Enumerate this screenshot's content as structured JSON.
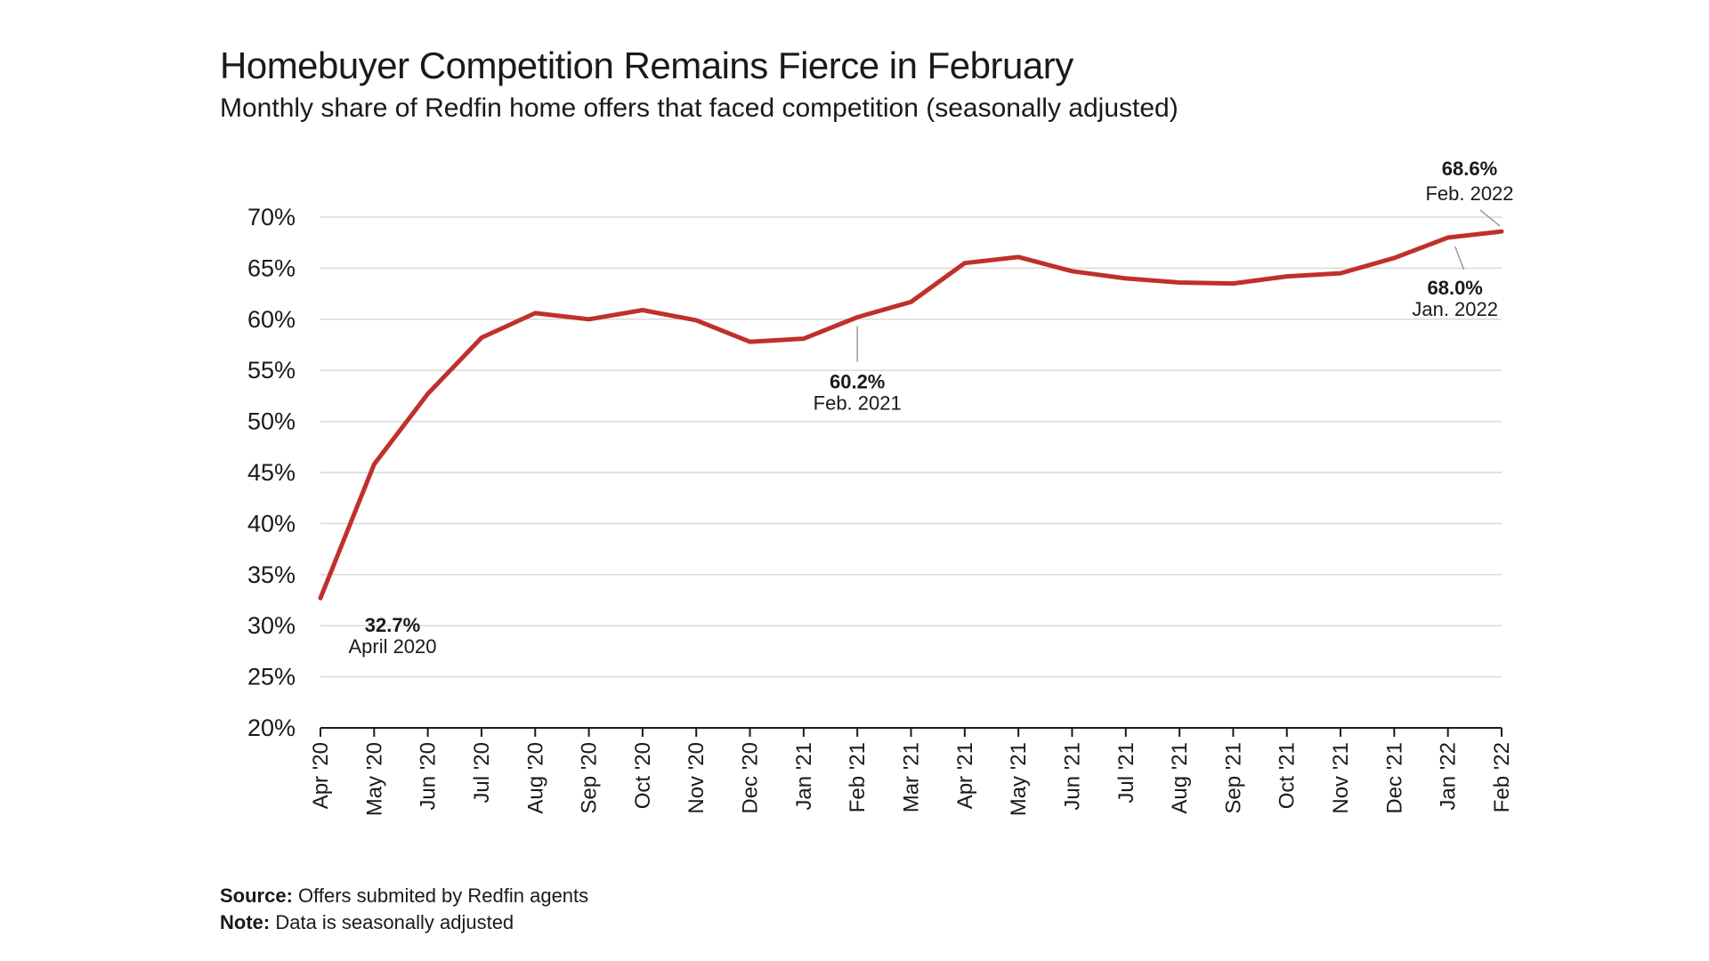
{
  "chart_data": {
    "type": "line",
    "title": "Homebuyer Competition Remains Fierce in February",
    "subtitle": "Monthly share of Redfin home offers that faced competition (seasonally adjusted)",
    "xlabel": "",
    "ylabel": "",
    "ylim": [
      20,
      70
    ],
    "yticks": [
      "20%",
      "25%",
      "30%",
      "35%",
      "40%",
      "45%",
      "50%",
      "55%",
      "60%",
      "65%",
      "70%"
    ],
    "ytick_values": [
      20,
      25,
      30,
      35,
      40,
      45,
      50,
      55,
      60,
      65,
      70
    ],
    "categories": [
      "Apr '20",
      "May '20",
      "Jun '20",
      "Jul '20",
      "Aug '20",
      "Sep '20",
      "Oct '20",
      "Nov '20",
      "Dec '20",
      "Jan '21",
      "Feb '21",
      "Mar '21",
      "Apr '21",
      "May '21",
      "Jun '21",
      "Jul '21",
      "Aug '21",
      "Sep '21",
      "Oct '21",
      "Nov '21",
      "Dec '21",
      "Jan '22",
      "Feb '22"
    ],
    "series": [
      {
        "name": "Share of offers facing competition",
        "color": "#c0302b",
        "values": [
          32.7,
          45.8,
          52.7,
          58.2,
          60.6,
          60.0,
          60.9,
          59.9,
          57.8,
          58.1,
          60.2,
          61.7,
          65.5,
          66.1,
          64.7,
          64.0,
          63.6,
          63.5,
          64.2,
          64.5,
          66.0,
          68.0,
          68.6
        ]
      }
    ],
    "grid": true,
    "annotations": [
      {
        "index": 0,
        "value": "32.7%",
        "label": "April 2020"
      },
      {
        "index": 10,
        "value": "60.2%",
        "label": "Feb. 2021"
      },
      {
        "index": 21,
        "value": "68.0%",
        "label": "Jan. 2022"
      },
      {
        "index": 22,
        "value": "68.6%",
        "label": "Feb. 2022"
      }
    ]
  },
  "footer": {
    "source_label": "Source:",
    "source_text": "Offers submited by Redfin agents",
    "note_label": "Note:",
    "note_text": "Data is seasonally adjusted"
  }
}
